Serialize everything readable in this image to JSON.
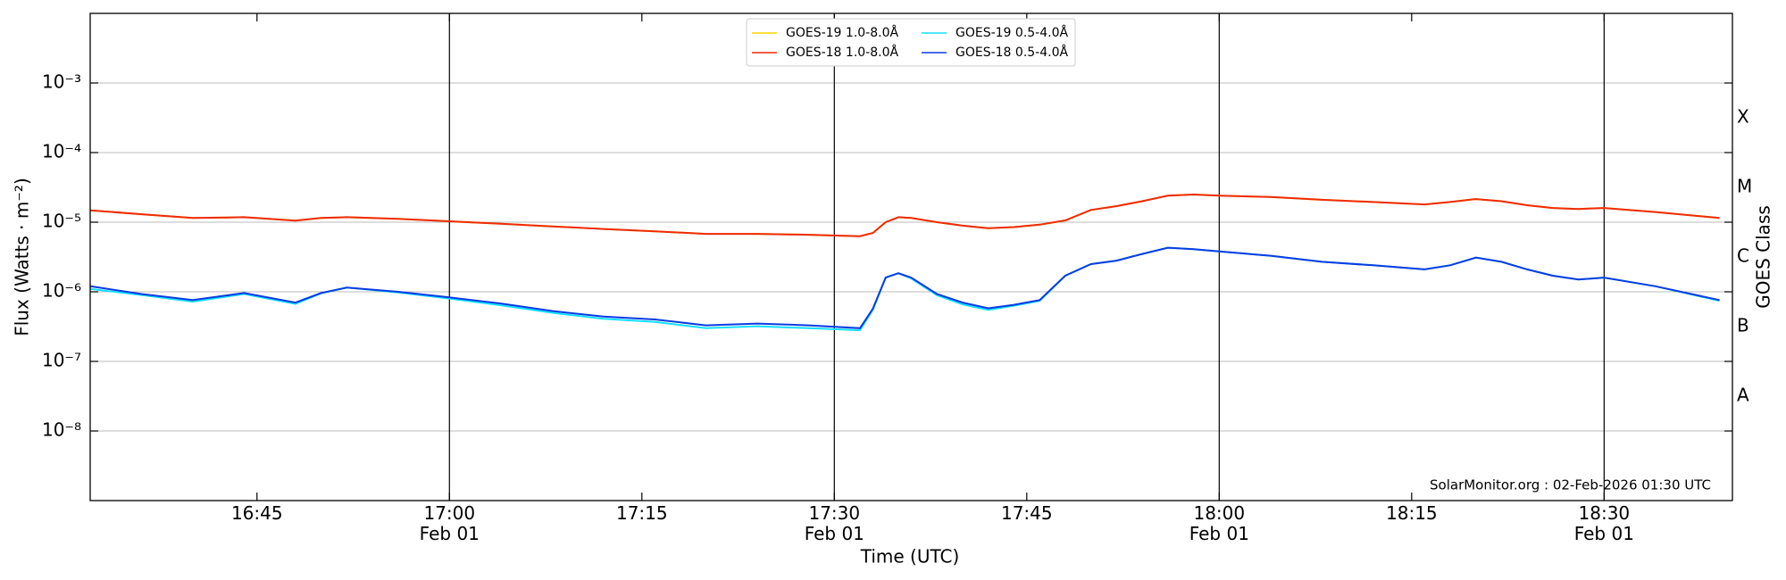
{
  "chart_data": {
    "type": "line",
    "ylabel": "Flux (Watts · m⁻²)",
    "xlabel": "Time (UTC)",
    "y2label": "GOES Class",
    "annotation": "SolarMonitor.org : 02-Feb-2026 01:30 UTC",
    "log_scale": true,
    "grid": true,
    "legend": "upper center",
    "xlim": [
      "16:32",
      "18:40"
    ],
    "xticks": [
      "16:45",
      {
        "value": "17:00",
        "label": "17:00\nFeb 01"
      },
      "17:15",
      {
        "value": "17:30",
        "label": "17:30\nFeb 01"
      },
      "17:45",
      {
        "value": "18:00",
        "label": "18:00\nFeb 01"
      },
      "18:15",
      {
        "value": "18:30",
        "label": "18:30\nFeb 01"
      }
    ],
    "vlines": [
      "17:00",
      "17:30",
      "18:00",
      "18:30"
    ],
    "ylim": [
      1e-09,
      0.01
    ],
    "yticks": [
      {
        "value": 0.001,
        "label": "10⁻³"
      },
      {
        "value": 0.0001,
        "label": "10⁻⁴"
      },
      {
        "value": 1e-05,
        "label": "10⁻⁵"
      },
      {
        "value": 1e-06,
        "label": "10⁻⁶"
      },
      {
        "value": 1e-07,
        "label": "10⁻⁷"
      },
      {
        "value": 1e-08,
        "label": "10⁻⁸"
      }
    ],
    "y2ticks": [
      {
        "value": 0.000316,
        "label": "X"
      },
      {
        "value": 3.16e-05,
        "label": "M"
      },
      {
        "value": 3.16e-06,
        "label": "C"
      },
      {
        "value": 3.16e-07,
        "label": "B"
      },
      {
        "value": 3.16e-08,
        "label": "A"
      }
    ],
    "x": [
      "16:32",
      "16:36",
      "16:40",
      "16:44",
      "16:48",
      "16:50",
      "16:52",
      "16:56",
      "17:00",
      "17:04",
      "17:08",
      "17:12",
      "17:16",
      "17:20",
      "17:24",
      "17:28",
      "17:32",
      "17:33",
      "17:34",
      "17:35",
      "17:36",
      "17:38",
      "17:40",
      "17:42",
      "17:44",
      "17:46",
      "17:48",
      "17:50",
      "17:52",
      "17:54",
      "17:56",
      "17:58",
      "18:00",
      "18:04",
      "18:08",
      "18:12",
      "18:16",
      "18:18",
      "18:20",
      "18:22",
      "18:24",
      "18:26",
      "18:28",
      "18:30",
      "18:34",
      "18:39"
    ],
    "series": [
      {
        "name": "GOES-19 1.0-8.0Å",
        "color": "#ffd400",
        "values": [
          1.48e-05,
          1.3e-05,
          1.15e-05,
          1.18e-05,
          1.05e-05,
          1.15e-05,
          1.18e-05,
          1.12e-05,
          1.03e-05,
          9.5e-06,
          8.7e-06,
          8e-06,
          7.4e-06,
          6.8e-06,
          6.8e-06,
          6.6e-06,
          6.3e-06,
          7e-06,
          1e-05,
          1.18e-05,
          1.15e-05,
          1e-05,
          8.9e-06,
          8.2e-06,
          8.5e-06,
          9.2e-06,
          1.06e-05,
          1.5e-05,
          1.7e-05,
          2e-05,
          2.4e-05,
          2.5e-05,
          2.4e-05,
          2.3e-05,
          2.1e-05,
          1.95e-05,
          1.8e-05,
          1.95e-05,
          2.15e-05,
          2e-05,
          1.75e-05,
          1.6e-05,
          1.55e-05,
          1.6e-05,
          1.4e-05,
          1.15e-05
        ]
      },
      {
        "name": "GOES-18 1.0-8.0Å",
        "color": "#ee2a0a",
        "values": [
          1.48e-05,
          1.3e-05,
          1.15e-05,
          1.18e-05,
          1.05e-05,
          1.15e-05,
          1.18e-05,
          1.12e-05,
          1.03e-05,
          9.5e-06,
          8.7e-06,
          8e-06,
          7.4e-06,
          6.8e-06,
          6.8e-06,
          6.6e-06,
          6.3e-06,
          7e-06,
          1e-05,
          1.18e-05,
          1.15e-05,
          1e-05,
          8.9e-06,
          8.2e-06,
          8.5e-06,
          9.2e-06,
          1.06e-05,
          1.5e-05,
          1.7e-05,
          2e-05,
          2.4e-05,
          2.5e-05,
          2.4e-05,
          2.3e-05,
          2.1e-05,
          1.95e-05,
          1.8e-05,
          1.95e-05,
          2.15e-05,
          2e-05,
          1.75e-05,
          1.6e-05,
          1.55e-05,
          1.6e-05,
          1.4e-05,
          1.15e-05
        ]
      },
      {
        "name": "GOES-19 0.5-4.0Å",
        "color": "#14e0ff",
        "values": [
          1.1e-06,
          9e-07,
          7.2e-07,
          9.3e-07,
          6.7e-07,
          9.5e-07,
          1.15e-06,
          9.8e-07,
          8e-07,
          6.4e-07,
          5e-07,
          4.1e-07,
          3.7e-07,
          3e-07,
          3.2e-07,
          3e-07,
          2.8e-07,
          5.5e-07,
          1.6e-06,
          1.85e-06,
          1.55e-06,
          8.9e-07,
          6.6e-07,
          5.5e-07,
          6.3e-07,
          7.4e-07,
          1.7e-06,
          2.5e-06,
          2.8e-06,
          3.5e-06,
          4.3e-06,
          4.1e-06,
          3.8e-06,
          3.3e-06,
          2.7e-06,
          2.4e-06,
          2.1e-06,
          2.4e-06,
          3.1e-06,
          2.7e-06,
          2.1e-06,
          1.7e-06,
          1.5e-06,
          1.6e-06,
          1.2e-06,
          7.4e-07
        ]
      },
      {
        "name": "GOES-18 0.5-4.0Å",
        "color": "#0a3ce0",
        "values": [
          1.2e-06,
          9.3e-07,
          7.6e-07,
          9.6e-07,
          7e-07,
          9.6e-07,
          1.15e-06,
          1e-06,
          8.3e-07,
          6.8e-07,
          5.3e-07,
          4.4e-07,
          4e-07,
          3.3e-07,
          3.5e-07,
          3.3e-07,
          3e-07,
          5.7e-07,
          1.6e-06,
          1.85e-06,
          1.6e-06,
          9.3e-07,
          7e-07,
          5.8e-07,
          6.5e-07,
          7.6e-07,
          1.7e-06,
          2.5e-06,
          2.8e-06,
          3.5e-06,
          4.3e-06,
          4.1e-06,
          3.8e-06,
          3.3e-06,
          2.7e-06,
          2.4e-06,
          2.1e-06,
          2.4e-06,
          3.1e-06,
          2.7e-06,
          2.1e-06,
          1.7e-06,
          1.5e-06,
          1.6e-06,
          1.2e-06,
          7.6e-07
        ]
      }
    ]
  }
}
